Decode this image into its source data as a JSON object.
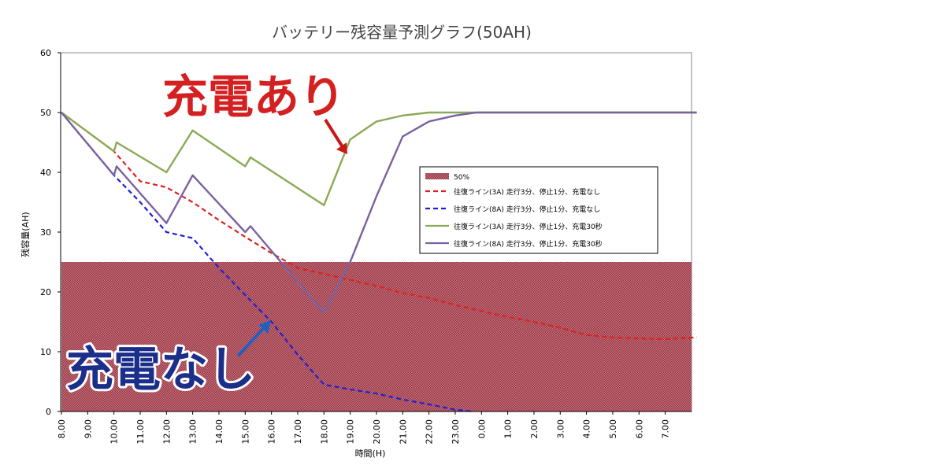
{
  "chart_data": {
    "type": "line",
    "title": "バッテリー残容量予測グラフ(50AH)",
    "xlabel": "時間(H)",
    "ylabel": "残容量(AH)",
    "ylim": [
      0,
      60
    ],
    "yticks": [
      0,
      10,
      20,
      30,
      40,
      50,
      60
    ],
    "categories": [
      "8:00",
      "9:00",
      "10:00",
      "11:00",
      "12:00",
      "13:00",
      "14:00",
      "15:00",
      "16:00",
      "17:00",
      "18:00",
      "19:00",
      "20:00",
      "21:00",
      "22:00",
      "23:00",
      "0:00",
      "1:00",
      "2:00",
      "3:00",
      "4:00",
      "5:00",
      "6:00",
      "7:00"
    ],
    "grid": false,
    "legend_position": "right",
    "band": {
      "name": "50%",
      "from": 0,
      "to": 25,
      "color": "#b0505a"
    },
    "series": [
      {
        "name": "往復ライン(3A) 走行3分、停止1分、充電なし",
        "color": "#e02020",
        "dash": true,
        "x": [
          0,
          2,
          3,
          4,
          5,
          6,
          7,
          8,
          9,
          10,
          11,
          12,
          13,
          14,
          15,
          16,
          17,
          18,
          19,
          20,
          21,
          22,
          23,
          24.2
        ],
        "y": [
          50,
          43.5,
          38.5,
          37.5,
          35,
          32,
          29.2,
          26.5,
          24,
          23,
          22,
          21,
          19.8,
          19,
          17.8,
          16.8,
          15.8,
          15,
          14,
          12.8,
          12.4,
          12.2,
          12.1,
          12.4
        ]
      },
      {
        "name": "往復ライン(8A) 走行3分、停止1分、充電なし",
        "color": "#2020d0",
        "dash": true,
        "x": [
          0,
          2,
          3,
          4,
          5,
          6,
          7,
          8,
          9,
          10,
          11,
          12,
          13,
          14,
          15,
          15.7
        ],
        "y": [
          50,
          39.5,
          35,
          30,
          29,
          24,
          19.5,
          15,
          9.5,
          4.5,
          3.7,
          3,
          2,
          1.2,
          0.3,
          0
        ]
      },
      {
        "name": "往復ライン(3A) 走行3分、停止1分、充電30秒",
        "color": "#8aaa55",
        "dash": false,
        "x": [
          0,
          2,
          2.1,
          4,
          5,
          7,
          7.2,
          10,
          11,
          12,
          13,
          14,
          15,
          15.8,
          17,
          24.2
        ],
        "y": [
          50,
          43.5,
          45,
          40,
          47,
          41,
          42.5,
          34.5,
          45.5,
          48.5,
          49.5,
          50,
          50,
          50,
          50,
          50
        ]
      },
      {
        "name": "往復ライン(8A) 走行3分、停止1分、充電30秒",
        "color": "#7a62a0",
        "dash": false,
        "x": [
          0,
          2,
          2.1,
          4,
          5,
          7,
          7.2,
          10,
          11,
          12,
          13,
          14,
          15,
          15.8,
          17,
          24.2
        ],
        "y": [
          50,
          39.5,
          41,
          31.5,
          39.5,
          30,
          31,
          16.5,
          25,
          36,
          46,
          48.5,
          49.5,
          50,
          50,
          50
        ]
      }
    ],
    "annotations": [
      {
        "text": "充電あり",
        "color": "#d42020",
        "target_series": 2
      },
      {
        "text": "充電なし",
        "color": "#1a2e8a",
        "target_series": 1
      }
    ]
  }
}
